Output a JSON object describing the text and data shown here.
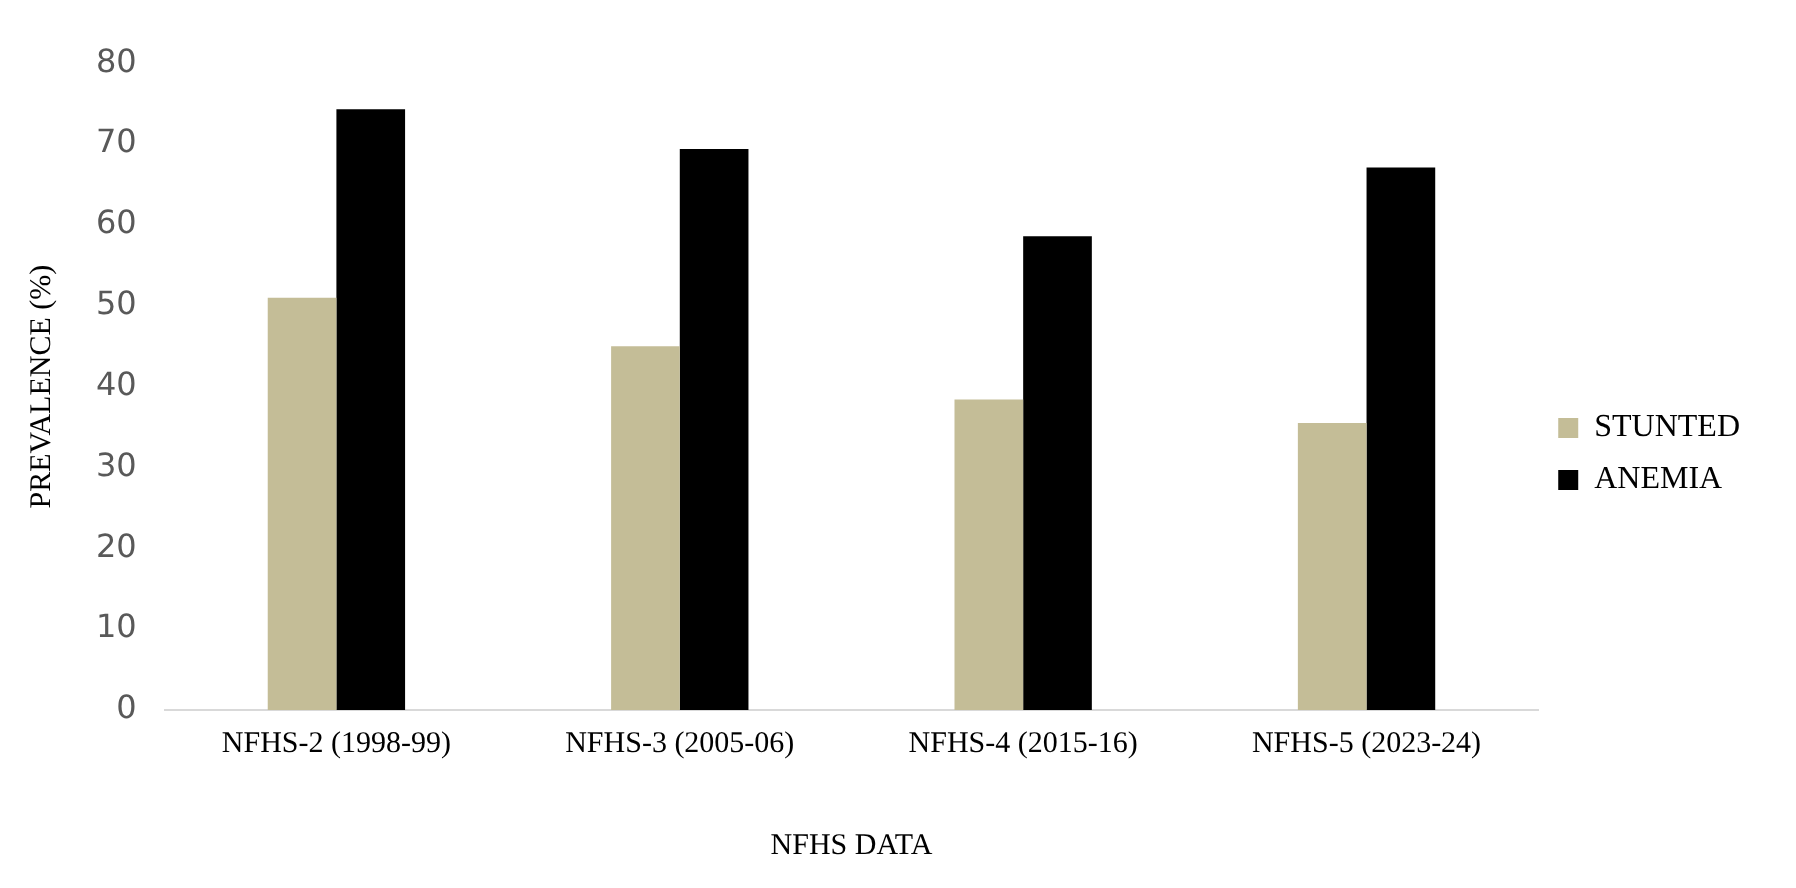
{
  "chart_data": {
    "type": "bar",
    "xlabel": "NFHS DATA",
    "ylabel": "PREVALENCE (%)",
    "categories": [
      "NFHS-2 (1998-99)",
      "NFHS-3 (2005-06)",
      "NFHS-4 (2015-16)",
      "NFHS-5 (2023-24)"
    ],
    "series": [
      {
        "name": "STUNTED",
        "color": "#c4bd97",
        "values": [
          51,
          45,
          38.4,
          35.5
        ]
      },
      {
        "name": "ANEMIA",
        "color": "#000000",
        "values": [
          74.3,
          69.4,
          58.6,
          67.1
        ]
      }
    ],
    "ylim": [
      0,
      80
    ],
    "yticks": [
      0,
      10,
      20,
      30,
      40,
      50,
      60,
      70,
      80
    ],
    "grid": false,
    "legend": "right"
  }
}
